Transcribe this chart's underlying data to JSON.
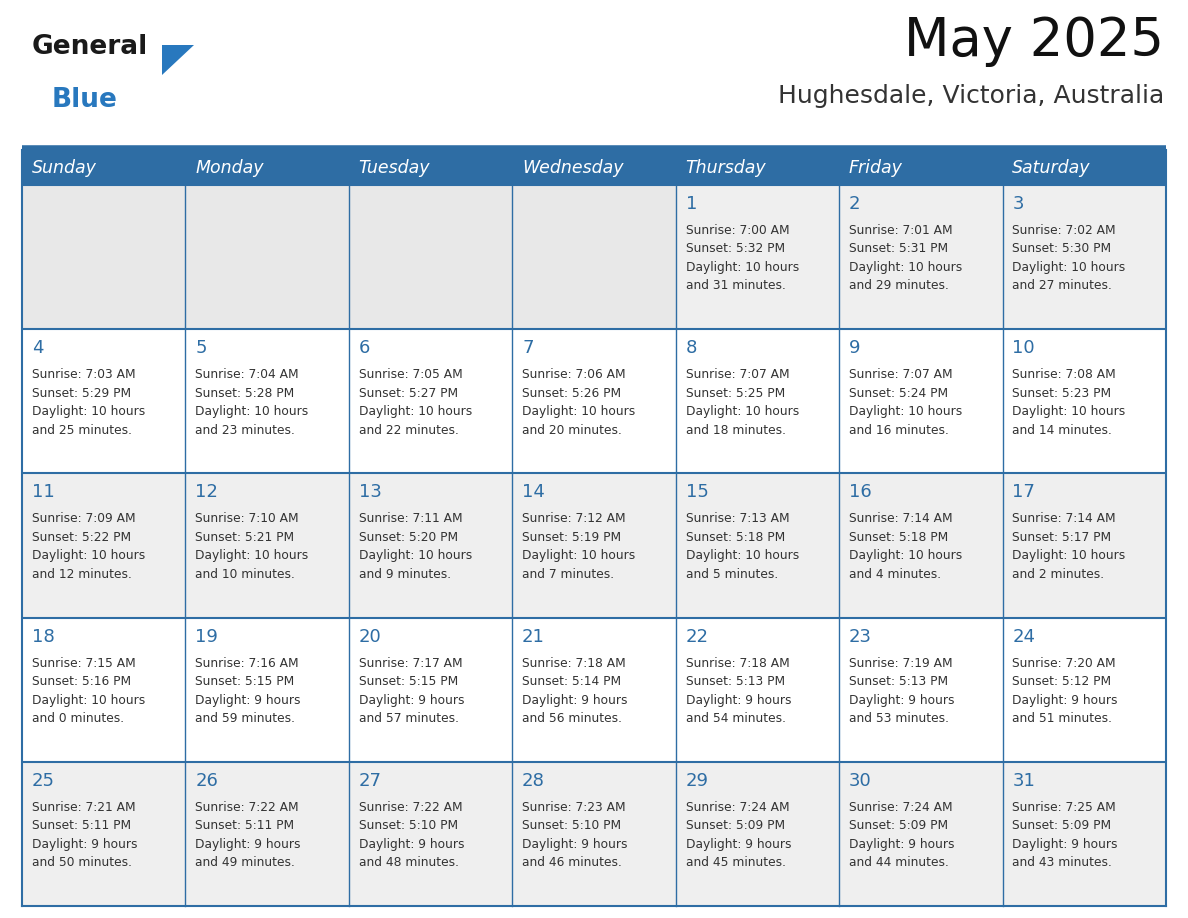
{
  "title": "May 2025",
  "subtitle": "Hughesdale, Victoria, Australia",
  "header_bg": "#2E6DA4",
  "header_text_color": "#FFFFFF",
  "day_names": [
    "Sunday",
    "Monday",
    "Tuesday",
    "Wednesday",
    "Thursday",
    "Friday",
    "Saturday"
  ],
  "cell_bg_even_row": "#EFEFEF",
  "cell_bg_odd_row": "#FFFFFF",
  "cell_bg_empty": "#E8E8E8",
  "text_color": "#333333",
  "date_color": "#2E6DA4",
  "line_color": "#2E6DA4",
  "logo_general_color": "#1A1A1A",
  "logo_blue_color": "#2878BE",
  "weeks": [
    [
      {
        "day": null,
        "info": null
      },
      {
        "day": null,
        "info": null
      },
      {
        "day": null,
        "info": null
      },
      {
        "day": null,
        "info": null
      },
      {
        "day": 1,
        "info": "Sunrise: 7:00 AM\nSunset: 5:32 PM\nDaylight: 10 hours\nand 31 minutes."
      },
      {
        "day": 2,
        "info": "Sunrise: 7:01 AM\nSunset: 5:31 PM\nDaylight: 10 hours\nand 29 minutes."
      },
      {
        "day": 3,
        "info": "Sunrise: 7:02 AM\nSunset: 5:30 PM\nDaylight: 10 hours\nand 27 minutes."
      }
    ],
    [
      {
        "day": 4,
        "info": "Sunrise: 7:03 AM\nSunset: 5:29 PM\nDaylight: 10 hours\nand 25 minutes."
      },
      {
        "day": 5,
        "info": "Sunrise: 7:04 AM\nSunset: 5:28 PM\nDaylight: 10 hours\nand 23 minutes."
      },
      {
        "day": 6,
        "info": "Sunrise: 7:05 AM\nSunset: 5:27 PM\nDaylight: 10 hours\nand 22 minutes."
      },
      {
        "day": 7,
        "info": "Sunrise: 7:06 AM\nSunset: 5:26 PM\nDaylight: 10 hours\nand 20 minutes."
      },
      {
        "day": 8,
        "info": "Sunrise: 7:07 AM\nSunset: 5:25 PM\nDaylight: 10 hours\nand 18 minutes."
      },
      {
        "day": 9,
        "info": "Sunrise: 7:07 AM\nSunset: 5:24 PM\nDaylight: 10 hours\nand 16 minutes."
      },
      {
        "day": 10,
        "info": "Sunrise: 7:08 AM\nSunset: 5:23 PM\nDaylight: 10 hours\nand 14 minutes."
      }
    ],
    [
      {
        "day": 11,
        "info": "Sunrise: 7:09 AM\nSunset: 5:22 PM\nDaylight: 10 hours\nand 12 minutes."
      },
      {
        "day": 12,
        "info": "Sunrise: 7:10 AM\nSunset: 5:21 PM\nDaylight: 10 hours\nand 10 minutes."
      },
      {
        "day": 13,
        "info": "Sunrise: 7:11 AM\nSunset: 5:20 PM\nDaylight: 10 hours\nand 9 minutes."
      },
      {
        "day": 14,
        "info": "Sunrise: 7:12 AM\nSunset: 5:19 PM\nDaylight: 10 hours\nand 7 minutes."
      },
      {
        "day": 15,
        "info": "Sunrise: 7:13 AM\nSunset: 5:18 PM\nDaylight: 10 hours\nand 5 minutes."
      },
      {
        "day": 16,
        "info": "Sunrise: 7:14 AM\nSunset: 5:18 PM\nDaylight: 10 hours\nand 4 minutes."
      },
      {
        "day": 17,
        "info": "Sunrise: 7:14 AM\nSunset: 5:17 PM\nDaylight: 10 hours\nand 2 minutes."
      }
    ],
    [
      {
        "day": 18,
        "info": "Sunrise: 7:15 AM\nSunset: 5:16 PM\nDaylight: 10 hours\nand 0 minutes."
      },
      {
        "day": 19,
        "info": "Sunrise: 7:16 AM\nSunset: 5:15 PM\nDaylight: 9 hours\nand 59 minutes."
      },
      {
        "day": 20,
        "info": "Sunrise: 7:17 AM\nSunset: 5:15 PM\nDaylight: 9 hours\nand 57 minutes."
      },
      {
        "day": 21,
        "info": "Sunrise: 7:18 AM\nSunset: 5:14 PM\nDaylight: 9 hours\nand 56 minutes."
      },
      {
        "day": 22,
        "info": "Sunrise: 7:18 AM\nSunset: 5:13 PM\nDaylight: 9 hours\nand 54 minutes."
      },
      {
        "day": 23,
        "info": "Sunrise: 7:19 AM\nSunset: 5:13 PM\nDaylight: 9 hours\nand 53 minutes."
      },
      {
        "day": 24,
        "info": "Sunrise: 7:20 AM\nSunset: 5:12 PM\nDaylight: 9 hours\nand 51 minutes."
      }
    ],
    [
      {
        "day": 25,
        "info": "Sunrise: 7:21 AM\nSunset: 5:11 PM\nDaylight: 9 hours\nand 50 minutes."
      },
      {
        "day": 26,
        "info": "Sunrise: 7:22 AM\nSunset: 5:11 PM\nDaylight: 9 hours\nand 49 minutes."
      },
      {
        "day": 27,
        "info": "Sunrise: 7:22 AM\nSunset: 5:10 PM\nDaylight: 9 hours\nand 48 minutes."
      },
      {
        "day": 28,
        "info": "Sunrise: 7:23 AM\nSunset: 5:10 PM\nDaylight: 9 hours\nand 46 minutes."
      },
      {
        "day": 29,
        "info": "Sunrise: 7:24 AM\nSunset: 5:09 PM\nDaylight: 9 hours\nand 45 minutes."
      },
      {
        "day": 30,
        "info": "Sunrise: 7:24 AM\nSunset: 5:09 PM\nDaylight: 9 hours\nand 44 minutes."
      },
      {
        "day": 31,
        "info": "Sunrise: 7:25 AM\nSunset: 5:09 PM\nDaylight: 9 hours\nand 43 minutes."
      }
    ]
  ]
}
